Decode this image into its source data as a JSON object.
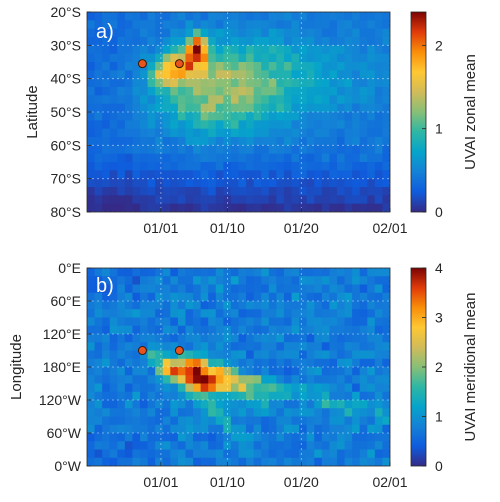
{
  "chart_data": [
    {
      "type": "heatmap",
      "panel_label": "a)",
      "ylabel": "Latitude",
      "colorbar_label": "UVAI zonal mean",
      "x_ticks": [
        "01/01",
        "01/10",
        "01/20",
        "02/01"
      ],
      "y_ticks": [
        "20°S",
        "30°S",
        "40°S",
        "50°S",
        "60°S",
        "70°S",
        "80°S"
      ],
      "colorbar_ticks": [
        "0",
        "1",
        "2"
      ],
      "clim": [
        0,
        2.4
      ],
      "grid": true,
      "x_range_days": [
        -10,
        31
      ],
      "y_range": [
        -80,
        -20
      ],
      "markers": [
        {
          "day": -2.5,
          "lat": -35.5
        },
        {
          "day": 2.5,
          "lat": -35.5
        }
      ],
      "plumes": [
        {
          "day": 5.0,
          "lat": -31,
          "sd_day": 0.8,
          "sd_lat": 3,
          "amp": 1.5
        },
        {
          "day": 3.5,
          "lat": -36,
          "sd_day": 1.5,
          "sd_lat": 4,
          "amp": 0.9
        },
        {
          "day": 0.5,
          "lat": -38,
          "sd_day": 1.3,
          "sd_lat": 3,
          "amp": 0.8
        },
        {
          "day": 8,
          "lat": -40,
          "sd_day": 6,
          "sd_lat": 8,
          "amp": 0.55
        },
        {
          "day": 16,
          "lat": -40,
          "sd_day": 9,
          "sd_lat": 9,
          "amp": 0.35
        },
        {
          "day": 7,
          "lat": -50,
          "sd_day": 5,
          "sd_lat": 6,
          "amp": 0.35
        }
      ]
    },
    {
      "type": "heatmap",
      "panel_label": "b)",
      "ylabel": "Longitude",
      "colorbar_label": "UVAI meridional mean",
      "x_ticks": [
        "01/01",
        "01/10",
        "01/20",
        "02/01"
      ],
      "y_ticks": [
        "0°E",
        "60°E",
        "120°E",
        "180°E",
        "120°W",
        "60°W",
        "0°W"
      ],
      "colorbar_ticks": [
        "0",
        "1",
        "2",
        "3",
        "4"
      ],
      "clim": [
        0,
        4
      ],
      "grid": true,
      "x_range_days": [
        -10,
        31
      ],
      "y_range": [
        0,
        360
      ],
      "markers": [
        {
          "day": -2.5,
          "lon": 150
        },
        {
          "day": 2.5,
          "lon": 150
        }
      ],
      "plumes": [
        {
          "day": 5.5,
          "lon": 210,
          "sd_day": 1.2,
          "sd_lon": 10,
          "amp": 2.6
        },
        {
          "day": 4.0,
          "lon": 190,
          "sd_day": 1.2,
          "sd_lon": 10,
          "amp": 1.6
        },
        {
          "day": 1.0,
          "lon": 190,
          "sd_day": 1.0,
          "sd_lon": 10,
          "amp": 1.4
        },
        {
          "day": 8,
          "lon": 215,
          "sd_day": 2.5,
          "sd_lon": 15,
          "amp": 1.2
        }
      ],
      "streaks": [
        {
          "d0": -0.5,
          "l0": 160,
          "d1": 30,
          "l1": 270,
          "width": 10,
          "amp": 1.0
        },
        {
          "d0": 1.0,
          "l0": 180,
          "d1": 12,
          "l1": 330,
          "width": 9,
          "amp": 1.0
        },
        {
          "d0": 4.0,
          "l0": 170,
          "d1": 14,
          "l1": 240,
          "width": 12,
          "amp": 1.4
        }
      ]
    }
  ]
}
